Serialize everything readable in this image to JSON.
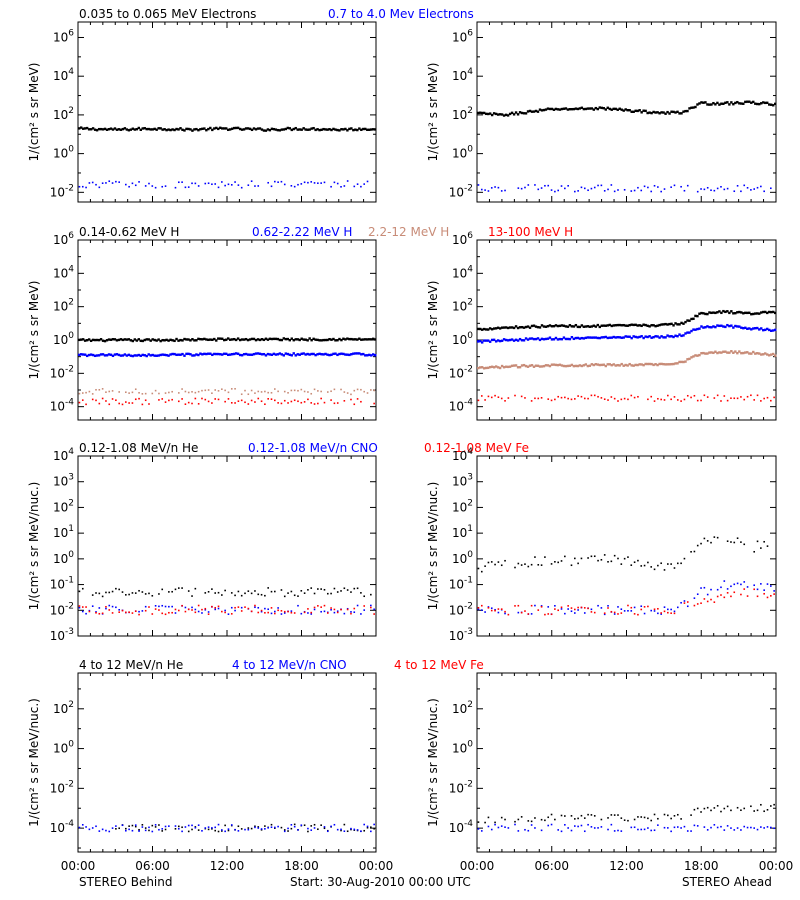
{
  "colors": {
    "black": "#000000",
    "blue": "#0000ff",
    "tan": "#c88c78",
    "red": "#ff0000"
  },
  "footer": {
    "left": "STEREO Behind",
    "center": "Start: 30-Aug-2010 00:00 UTC",
    "right": "STEREO Ahead"
  },
  "time_ticks": [
    "00:00",
    "06:00",
    "12:00",
    "18:00",
    "00:00"
  ],
  "rows": [
    {
      "legend": [
        {
          "text": "0.035 to 0.065 MeV Electrons",
          "color": "black"
        },
        {
          "text": "0.7 to 4.0 Mev Electrons",
          "color": "blue"
        }
      ],
      "ylabel": "1/(cm² s sr MeV)",
      "yticks": [
        -2,
        0,
        2,
        4,
        6
      ],
      "yrange": [
        -2.5,
        6.8
      ]
    },
    {
      "legend": [
        {
          "text": "0.14-0.62 MeV H",
          "color": "black"
        },
        {
          "text": "0.62-2.22 MeV H",
          "color": "blue"
        },
        {
          "text": "2.2-12 MeV H",
          "color": "tan"
        },
        {
          "text": "13-100 MeV H",
          "color": "red"
        }
      ],
      "ylabel": "1/(cm² s sr MeV)",
      "yticks": [
        -4,
        -2,
        0,
        2,
        4,
        6
      ],
      "yrange": [
        -4.8,
        6
      ]
    },
    {
      "legend": [
        {
          "text": "0.12-1.08 MeV/n He",
          "color": "black"
        },
        {
          "text": "0.12-1.08 MeV/n CNO",
          "color": "blue"
        },
        {
          "text": "0.12-1.08 MeV Fe",
          "color": "red"
        }
      ],
      "ylabel": "1/(cm² s sr MeV/nuc.)",
      "yticks": [
        -3,
        -2,
        -1,
        0,
        1,
        2,
        3,
        4
      ],
      "yrange": [
        -3,
        4
      ]
    },
    {
      "legend": [
        {
          "text": "4 to 12 MeV/n He",
          "color": "black"
        },
        {
          "text": "4 to 12 MeV/n CNO",
          "color": "blue"
        },
        {
          "text": "4 to 12 MeV Fe",
          "color": "red"
        }
      ],
      "ylabel": "1/(cm² s sr MeV/nuc.)",
      "yticks": [
        -4,
        -2,
        0,
        2
      ],
      "yrange": [
        -5.2,
        3.8
      ]
    }
  ],
  "chart_data": [
    {
      "type": "scatter",
      "panel": "STEREO Behind - electrons",
      "x_unit": "hours since 30-Aug-2010 00:00 UTC",
      "xlim": [
        0,
        24
      ],
      "log_y": true,
      "series": [
        {
          "name": "0.035 to 0.065 MeV Electrons",
          "color": "black",
          "style": "line",
          "x": [
            0,
            3,
            6,
            9,
            12,
            15,
            18,
            21,
            24
          ],
          "log10_y": [
            1.3,
            1.25,
            1.3,
            1.25,
            1.3,
            1.25,
            1.3,
            1.25,
            1.3
          ]
        },
        {
          "name": "0.7 to 4.0 Mev Electrons",
          "color": "blue",
          "style": "dots",
          "x": [
            0,
            6,
            12,
            18,
            24
          ],
          "log10_y": [
            -1.6,
            -1.6,
            -1.6,
            -1.6,
            -1.6
          ]
        }
      ]
    },
    {
      "type": "scatter",
      "panel": "STEREO Ahead - electrons",
      "x_unit": "hours since 30-Aug-2010 00:00 UTC",
      "xlim": [
        0,
        24
      ],
      "log_y": true,
      "series": [
        {
          "name": "0.035 to 0.065 MeV Electrons",
          "color": "black",
          "style": "line",
          "x": [
            0,
            2,
            6,
            10,
            15,
            16.5,
            18,
            20,
            22,
            24
          ],
          "log10_y": [
            2.1,
            2.0,
            2.3,
            2.35,
            2.1,
            2.15,
            2.6,
            2.6,
            2.65,
            2.55
          ]
        },
        {
          "name": "0.7 to 4.0 Mev Electrons",
          "color": "blue",
          "style": "dots",
          "x": [
            0,
            6,
            12,
            18,
            24
          ],
          "log10_y": [
            -1.8,
            -1.8,
            -1.8,
            -1.8,
            -1.8
          ]
        }
      ]
    },
    {
      "type": "scatter",
      "panel": "STEREO Behind - protons",
      "x_unit": "hours since 30-Aug-2010 00:00 UTC",
      "xlim": [
        0,
        24
      ],
      "log_y": true,
      "series": [
        {
          "name": "0.14-0.62 MeV H",
          "color": "black",
          "style": "line",
          "x": [
            0,
            6,
            12,
            18,
            24
          ],
          "log10_y": [
            0.0,
            0.0,
            0.05,
            0.05,
            0.05
          ]
        },
        {
          "name": "0.62-2.22 MeV H",
          "color": "blue",
          "style": "line",
          "x": [
            0,
            6,
            12,
            18,
            24
          ],
          "log10_y": [
            -0.9,
            -0.9,
            -0.85,
            -0.85,
            -0.85
          ]
        },
        {
          "name": "2.2-12 MeV H",
          "color": "tan",
          "style": "dots",
          "x": [
            0,
            6,
            12,
            18,
            24
          ],
          "log10_y": [
            -3.1,
            -3.1,
            -3.1,
            -3.1,
            -3.1
          ]
        },
        {
          "name": "13-100 MeV H",
          "color": "red",
          "style": "dots",
          "x": [
            0,
            6,
            12,
            18,
            24
          ],
          "log10_y": [
            -3.7,
            -3.7,
            -3.7,
            -3.7,
            -3.7
          ]
        }
      ]
    },
    {
      "type": "scatter",
      "panel": "STEREO Ahead - protons",
      "x_unit": "hours since 30-Aug-2010 00:00 UTC",
      "xlim": [
        0,
        24
      ],
      "log_y": true,
      "series": [
        {
          "name": "0.14-0.62 MeV H",
          "color": "black",
          "style": "line",
          "x": [
            0,
            2,
            6,
            10,
            15,
            16.5,
            18,
            20,
            22,
            24
          ],
          "log10_y": [
            0.65,
            0.75,
            0.85,
            0.85,
            0.9,
            1.0,
            1.6,
            1.7,
            1.6,
            1.7
          ]
        },
        {
          "name": "0.62-2.22 MeV H",
          "color": "blue",
          "style": "line",
          "x": [
            0,
            2,
            6,
            10,
            15,
            16.5,
            18,
            20,
            22,
            24
          ],
          "log10_y": [
            -0.1,
            0.0,
            0.1,
            0.15,
            0.2,
            0.3,
            0.8,
            0.85,
            0.7,
            0.6
          ]
        },
        {
          "name": "2.2-12 MeV H",
          "color": "tan",
          "style": "line",
          "x": [
            0,
            2,
            6,
            10,
            15,
            16.5,
            18,
            20,
            22,
            24
          ],
          "log10_y": [
            -1.7,
            -1.6,
            -1.5,
            -1.5,
            -1.45,
            -1.3,
            -0.8,
            -0.7,
            -0.75,
            -0.9
          ]
        },
        {
          "name": "13-100 MeV H",
          "color": "red",
          "style": "dots",
          "x": [
            0,
            6,
            12,
            18,
            24
          ],
          "log10_y": [
            -3.5,
            -3.5,
            -3.5,
            -3.5,
            -3.5
          ]
        }
      ]
    },
    {
      "type": "scatter",
      "panel": "STEREO Behind - low energy ions",
      "x_unit": "hours since 30-Aug-2010 00:00 UTC",
      "xlim": [
        0,
        24
      ],
      "log_y": true,
      "series": [
        {
          "name": "0.12-1.08 MeV/n He",
          "color": "black",
          "style": "dots",
          "x": [
            0,
            6,
            12,
            18,
            24
          ],
          "log10_y": [
            -1.3,
            -1.3,
            -1.3,
            -1.3,
            -1.3
          ]
        },
        {
          "name": "0.12-1.08 MeV/n CNO",
          "color": "blue",
          "style": "dots",
          "x": [
            0,
            6,
            12,
            18,
            24
          ],
          "log10_y": [
            -2.0,
            -2.0,
            -2.0,
            -2.0,
            -2.0
          ]
        },
        {
          "name": "0.12-1.08 MeV Fe",
          "color": "red",
          "style": "dots",
          "x": [
            0,
            6,
            12,
            18,
            24
          ],
          "log10_y": [
            -2.0,
            -2.0,
            -2.0,
            -2.0,
            -2.0
          ]
        }
      ]
    },
    {
      "type": "scatter",
      "panel": "STEREO Ahead - low energy ions",
      "x_unit": "hours since 30-Aug-2010 00:00 UTC",
      "xlim": [
        0,
        24
      ],
      "log_y": true,
      "series": [
        {
          "name": "0.12-1.08 MeV/n He",
          "color": "black",
          "style": "dots",
          "x": [
            0,
            2,
            4,
            6,
            8,
            10,
            12,
            14,
            16,
            17,
            18,
            20,
            21,
            22,
            23,
            24
          ],
          "log10_y": [
            -0.35,
            -0.25,
            -0.15,
            -0.05,
            -0.1,
            0.0,
            -0.05,
            -0.3,
            -0.4,
            0.1,
            0.6,
            0.85,
            0.7,
            0.35,
            0.65,
            0.35
          ]
        },
        {
          "name": "0.12-1.08 MeV/n CNO",
          "color": "blue",
          "style": "dots",
          "x": [
            0,
            6,
            12,
            16,
            18,
            20,
            22,
            24
          ],
          "log10_y": [
            -2.0,
            -2.0,
            -2.0,
            -2.0,
            -1.3,
            -1.0,
            -1.0,
            -1.1
          ]
        },
        {
          "name": "0.12-1.08 MeV Fe",
          "color": "red",
          "style": "dots",
          "x": [
            0,
            6,
            12,
            16,
            18,
            20,
            22,
            24
          ],
          "log10_y": [
            -2.0,
            -2.0,
            -2.0,
            -2.0,
            -1.7,
            -1.5,
            -1.3,
            -1.4
          ]
        }
      ]
    },
    {
      "type": "scatter",
      "panel": "STEREO Behind - high energy ions",
      "x_unit": "hours since 30-Aug-2010 00:00 UTC",
      "xlim": [
        0,
        24
      ],
      "log_y": true,
      "series": [
        {
          "name": "4 to 12 MeV/n He",
          "color": "black",
          "style": "dots",
          "x": [
            3,
            8,
            12,
            15,
            20,
            24
          ],
          "log10_y": [
            -4.0,
            -4.0,
            -4.0,
            -4.0,
            -4.0,
            -4.0
          ]
        },
        {
          "name": "4 to 12 MeV/n CNO",
          "color": "blue",
          "style": "dots",
          "x": [
            0,
            6,
            12,
            18,
            24
          ],
          "log10_y": [
            -4.0,
            -4.0,
            -4.0,
            -4.0,
            -4.0
          ]
        }
      ]
    },
    {
      "type": "scatter",
      "panel": "STEREO Ahead - high energy ions",
      "x_unit": "hours since 30-Aug-2010 00:00 UTC",
      "xlim": [
        0,
        24
      ],
      "log_y": true,
      "series": [
        {
          "name": "4 to 12 MeV/n He",
          "color": "black",
          "style": "dots",
          "x": [
            0,
            4,
            8,
            12,
            16,
            18,
            20,
            22,
            24
          ],
          "log10_y": [
            -3.6,
            -3.5,
            -3.5,
            -3.5,
            -3.5,
            -3.1,
            -3.05,
            -3.0,
            -3.0
          ]
        },
        {
          "name": "4 to 12 MeV/n CNO",
          "color": "blue",
          "style": "dots",
          "x": [
            0,
            6,
            12,
            18,
            24
          ],
          "log10_y": [
            -4.0,
            -4.0,
            -4.0,
            -4.0,
            -4.0
          ]
        }
      ]
    }
  ]
}
